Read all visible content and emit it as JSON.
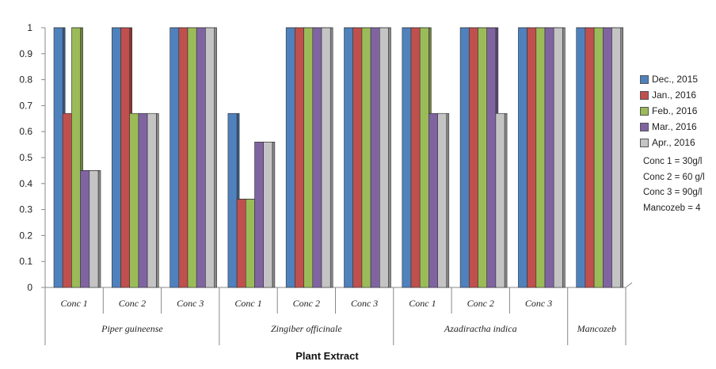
{
  "chart_data": {
    "type": "bar",
    "xlabel": "Plant Extract",
    "ylabel": "",
    "ylim": [
      0,
      1
    ],
    "yticks": [
      "0",
      "0.1",
      "0.2",
      "0.3",
      "0.4",
      "0.5",
      "0.6",
      "0.7",
      "0.8",
      "0.9",
      "1"
    ],
    "groups": [
      {
        "name": "Piper guineense",
        "categories": [
          "Conc 1",
          "Conc 2",
          "Conc 3"
        ]
      },
      {
        "name": "Zingiber officinale",
        "categories": [
          "Conc 1",
          "Conc 2",
          "Conc 3"
        ]
      },
      {
        "name": "Azadiractha indica",
        "categories": [
          "Conc 1",
          "Conc 2",
          "Conc 3"
        ]
      },
      {
        "name": "Mancozeb",
        "categories": [
          ""
        ]
      }
    ],
    "series": [
      {
        "name": "Dec., 2015",
        "color": "#4F81BD",
        "values": [
          1,
          1,
          1,
          0.67,
          1,
          1,
          1,
          1,
          1,
          1
        ]
      },
      {
        "name": "Jan., 2016",
        "color": "#C0504D",
        "values": [
          0.67,
          1,
          1,
          0.34,
          1,
          1,
          1,
          1,
          1,
          1
        ]
      },
      {
        "name": "Feb., 2016",
        "color": "#9BBB59",
        "values": [
          1,
          0.67,
          1,
          0.34,
          1,
          1,
          1,
          1,
          1,
          1
        ]
      },
      {
        "name": "Mar., 2016",
        "color": "#8064A2",
        "values": [
          0.45,
          0.67,
          1,
          0.56,
          1,
          1,
          0.67,
          1,
          1,
          1
        ]
      },
      {
        "name": "Apr., 2016",
        "color": "#C4C4C4",
        "values": [
          0.45,
          0.67,
          1,
          0.56,
          1,
          1,
          0.67,
          0.67,
          1,
          1
        ]
      }
    ],
    "notes": [
      "Conc 1 = 30g/l",
      "Conc 2 = 60 g/l",
      "Conc 3 = 90g/l",
      "Mancozeb = 4"
    ],
    "legend_position": "right",
    "grid": false
  }
}
